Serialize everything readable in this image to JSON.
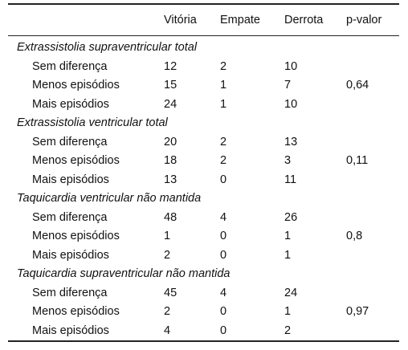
{
  "header": {
    "col_label": "",
    "col_vitoria": "Vitória",
    "col_empate": "Empate",
    "col_derrota": "Derrota",
    "col_pvalor": "p-valor"
  },
  "groups": [
    {
      "title": "Extrassistolia supraventricular total",
      "rows": [
        {
          "label": "Sem diferença",
          "vitoria": "12",
          "empate": "2",
          "derrota": "10",
          "pvalor": ""
        },
        {
          "label": "Menos episódios",
          "vitoria": "15",
          "empate": "1",
          "derrota": "7",
          "pvalor": "0,64"
        },
        {
          "label": "Mais episódios",
          "vitoria": "24",
          "empate": "1",
          "derrota": "10",
          "pvalor": ""
        }
      ]
    },
    {
      "title": "Extrassistolia ventricular total",
      "rows": [
        {
          "label": "Sem diferença",
          "vitoria": "20",
          "empate": "2",
          "derrota": "13",
          "pvalor": ""
        },
        {
          "label": "Menos episódios",
          "vitoria": "18",
          "empate": "2",
          "derrota": "3",
          "pvalor": "0,11"
        },
        {
          "label": "Mais episódios",
          "vitoria": "13",
          "empate": "0",
          "derrota": "11",
          "pvalor": ""
        }
      ]
    },
    {
      "title": "Taquicardia ventricular não mantida",
      "rows": [
        {
          "label": "Sem diferença",
          "vitoria": "48",
          "empate": "4",
          "derrota": "26",
          "pvalor": ""
        },
        {
          "label": "Menos episódios",
          "vitoria": "1",
          "empate": "0",
          "derrota": "1",
          "pvalor": "0,8"
        },
        {
          "label": "Mais episódios",
          "vitoria": "2",
          "empate": "0",
          "derrota": "1",
          "pvalor": ""
        }
      ]
    },
    {
      "title": "Taquicardia supraventricular não mantida",
      "rows": [
        {
          "label": "Sem diferença",
          "vitoria": "45",
          "empate": "4",
          "derrota": "24",
          "pvalor": ""
        },
        {
          "label": "Menos episódios",
          "vitoria": "2",
          "empate": "0",
          "derrota": "1",
          "pvalor": "0,97"
        },
        {
          "label": "Mais episódios",
          "vitoria": "4",
          "empate": "0",
          "derrota": "2",
          "pvalor": ""
        }
      ]
    }
  ]
}
